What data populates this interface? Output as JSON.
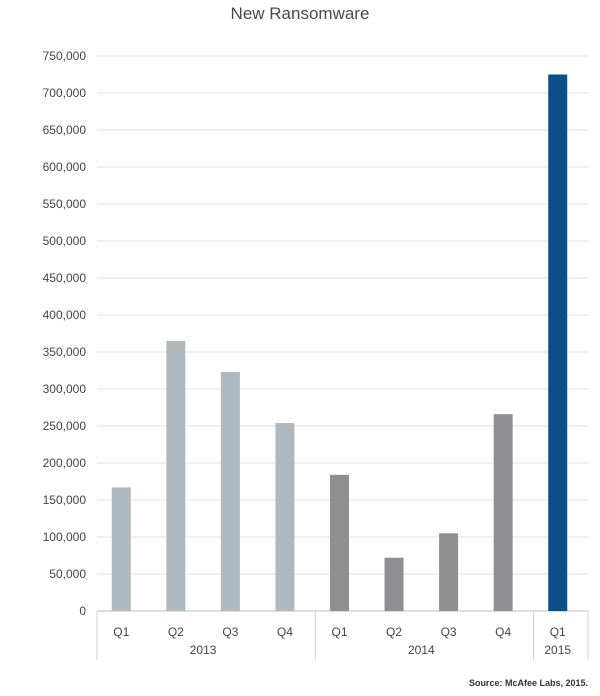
{
  "chart_data": {
    "type": "bar",
    "title": "New Ransomware",
    "xlabel": "",
    "ylabel": "",
    "ylim": [
      0,
      750000
    ],
    "grid": true,
    "yticks": [
      "0",
      "50,000",
      "100,000",
      "150,000",
      "200,000",
      "250,000",
      "300,000",
      "350,000",
      "400,000",
      "450,000",
      "500,000",
      "550,000",
      "600,000",
      "650,000",
      "700,000",
      "750,000"
    ],
    "categories": [
      "Q1",
      "Q2",
      "Q3",
      "Q4",
      "Q1",
      "Q2",
      "Q3",
      "Q4",
      "Q1"
    ],
    "groups": [
      {
        "label": "2013",
        "start": 0,
        "end": 3
      },
      {
        "label": "2014",
        "start": 4,
        "end": 7
      },
      {
        "label": "2015",
        "start": 8,
        "end": 8
      }
    ],
    "values": [
      167000,
      365000,
      323000,
      254000,
      184000,
      72000,
      105000,
      266000,
      725000
    ],
    "bar_colors": [
      "#b1b9c0",
      "#b1b9c0",
      "#b1b9c0",
      "#b1b9c0",
      "#8f8f92",
      "#8f8f92",
      "#8f8f92",
      "#8f8f92",
      "#0b4f88"
    ]
  },
  "source": "Source: McAfee Labs, 2015."
}
